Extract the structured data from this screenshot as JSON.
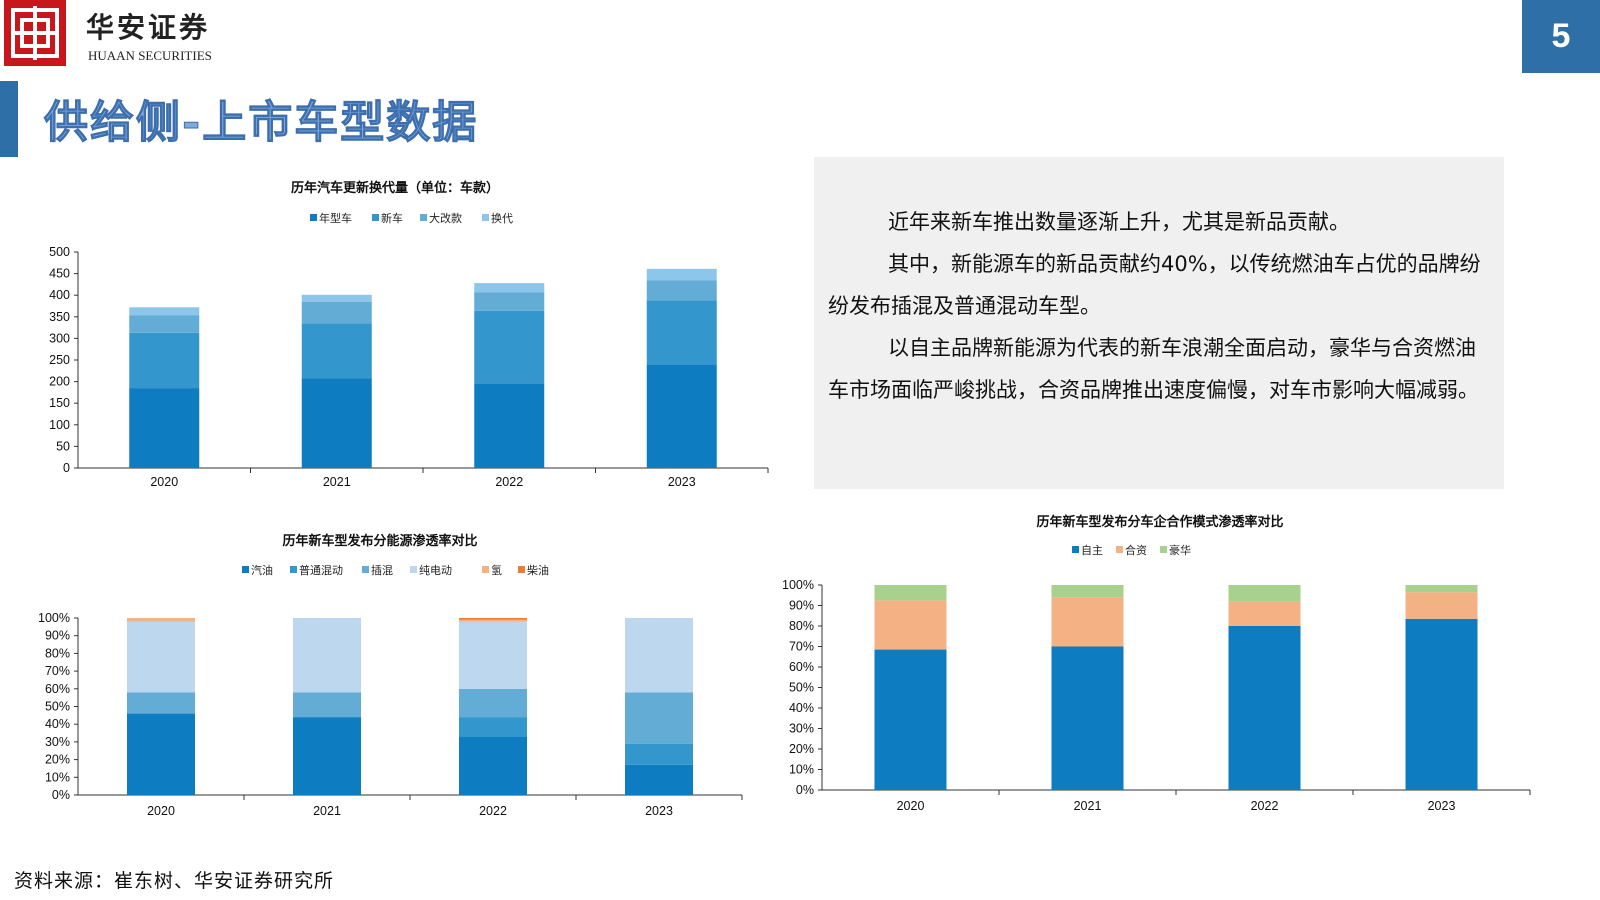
{
  "header": {
    "brand_cn": "华安证券",
    "brand_en": "HUAAN SECURITIES",
    "page_number": "5"
  },
  "page_title": "供给侧-上市车型数据",
  "text_panel": {
    "paragraphs": [
      "近年来新车推出数量逐渐上升，尤其是新品贡献。",
      "其中，新能源车的新品贡献约40%，以传统燃油车占优的品牌纷纷发布插混及普通混动车型。",
      "以自主品牌新能源为代表的新车浪潮全面启动，豪华与合资燃油车市场面临严峻挑战，合资品牌推出速度偏慢，对车市影响大幅减弱。"
    ]
  },
  "source_note": "资料来源：崔东树、华安证券研究所",
  "colors": {
    "brand_red": "#c8161d",
    "accent_blue": "#2f6fa8",
    "title_blue": "#7fa9dd",
    "panel_gray": "#f0f0f0"
  },
  "chart_data": [
    {
      "id": "chart1",
      "type": "bar",
      "stacked": true,
      "title": "历年汽车更新换代量（单位：车款）",
      "categories": [
        "2020",
        "2021",
        "2022",
        "2023"
      ],
      "ylim": [
        0,
        500
      ],
      "yticks": [
        "0",
        "50",
        "100",
        "150",
        "200",
        "250",
        "300",
        "350",
        "400",
        "450",
        "500"
      ],
      "legend_position": "top",
      "grid": false,
      "series": [
        {
          "name": "年型车",
          "color": "#0e7cc0",
          "values": [
            185,
            208,
            196,
            240
          ]
        },
        {
          "name": "新车",
          "color": "#3396cc",
          "values": [
            128,
            127,
            168,
            148
          ]
        },
        {
          "name": "大改款",
          "color": "#62acd6",
          "values": [
            40,
            50,
            43,
            46
          ]
        },
        {
          "name": "换代",
          "color": "#8cc6ea",
          "values": [
            19,
            16,
            21,
            27
          ]
        }
      ]
    },
    {
      "id": "chart2",
      "type": "bar",
      "stacked": true,
      "title": "历年新车型发布分能源渗透率对比",
      "categories": [
        "2020",
        "2021",
        "2022",
        "2023"
      ],
      "ylim": [
        0,
        100
      ],
      "yticks": [
        "0%",
        "10%",
        "20%",
        "30%",
        "40%",
        "50%",
        "60%",
        "70%",
        "80%",
        "90%",
        "100%"
      ],
      "legend_position": "top",
      "grid": false,
      "series": [
        {
          "name": "汽油",
          "color": "#0e7cc0",
          "values": [
            46,
            44,
            33,
            17
          ]
        },
        {
          "name": "普通混动",
          "color": "#3396cc",
          "values": [
            0,
            0,
            11,
            12
          ]
        },
        {
          "name": "插混",
          "color": "#62acd6",
          "values": [
            12,
            14,
            16,
            29
          ]
        },
        {
          "name": "纯电动",
          "color": "#bdd7ee",
          "values": [
            40,
            42,
            38,
            42
          ]
        },
        {
          "name": "氢",
          "color": "#f4b183",
          "values": [
            2,
            0,
            1,
            0
          ]
        },
        {
          "name": "柴油",
          "color": "#ed7d31",
          "values": [
            0,
            0,
            1,
            0
          ]
        }
      ]
    },
    {
      "id": "chart3",
      "type": "bar",
      "stacked": true,
      "title": "历年新车型发布分车企合作模式渗透率对比",
      "categories": [
        "2020",
        "2021",
        "2022",
        "2023"
      ],
      "ylim": [
        0,
        100
      ],
      "yticks": [
        "0%",
        "10%",
        "20%",
        "30%",
        "40%",
        "50%",
        "60%",
        "70%",
        "80%",
        "90%",
        "100%"
      ],
      "legend_position": "top",
      "grid": false,
      "series": [
        {
          "name": "自主",
          "color": "#0e7cc0",
          "values": [
            68.5,
            70,
            80,
            83.5
          ]
        },
        {
          "name": "合资",
          "color": "#f4b183",
          "values": [
            24,
            24,
            12,
            13
          ]
        },
        {
          "name": "豪华",
          "color": "#a9d18e",
          "values": [
            7.5,
            6,
            8,
            3.5
          ]
        }
      ]
    }
  ]
}
